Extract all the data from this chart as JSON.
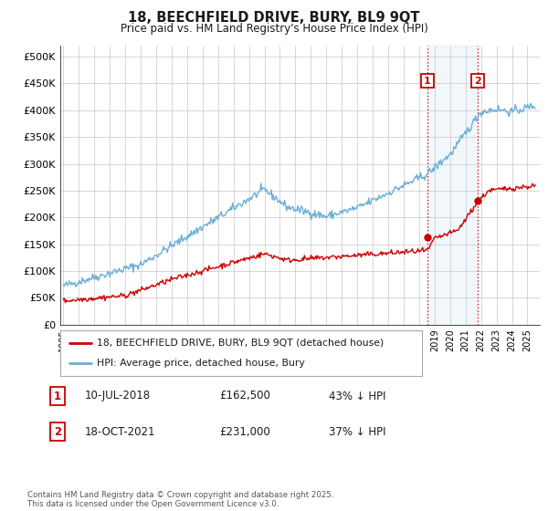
{
  "title": "18, BEECHFIELD DRIVE, BURY, BL9 9QT",
  "subtitle": "Price paid vs. HM Land Registry's House Price Index (HPI)",
  "hpi_color": "#6baed6",
  "property_color": "#cc0000",
  "vline_color": "#cc0000",
  "vline_style": ":",
  "shade_color": "#cce0f5",
  "ylabel_ticks": [
    "£0",
    "£50K",
    "£100K",
    "£150K",
    "£200K",
    "£250K",
    "£300K",
    "£350K",
    "£400K",
    "£450K",
    "£500K"
  ],
  "ytick_values": [
    0,
    50000,
    100000,
    150000,
    200000,
    250000,
    300000,
    350000,
    400000,
    450000,
    500000
  ],
  "ylim": [
    0,
    520000
  ],
  "xlim_start": 1994.8,
  "xlim_end": 2025.8,
  "transaction1_date": 2018.53,
  "transaction1_label": "1",
  "transaction1_price": 162500,
  "transaction1_text": "10-JUL-2018",
  "transaction1_hpi_diff": "43% ↓ HPI",
  "transaction2_date": 2021.79,
  "transaction2_label": "2",
  "transaction2_price": 231000,
  "transaction2_text": "18-OCT-2021",
  "transaction2_hpi_diff": "37% ↓ HPI",
  "legend_property": "18, BEECHFIELD DRIVE, BURY, BL9 9QT (detached house)",
  "legend_hpi": "HPI: Average price, detached house, Bury",
  "footer": "Contains HM Land Registry data © Crown copyright and database right 2025.\nThis data is licensed under the Open Government Licence v3.0.",
  "background_color": "#ffffff",
  "grid_color": "#c8c8c8"
}
